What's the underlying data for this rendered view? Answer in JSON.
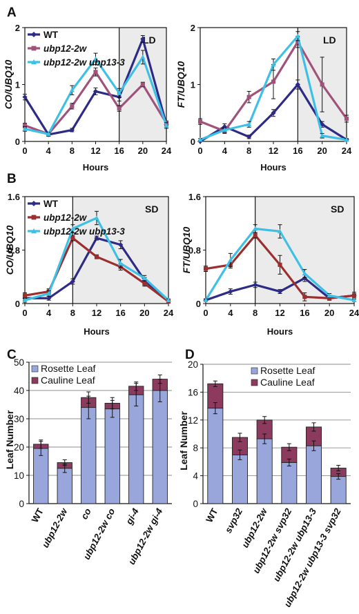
{
  "panel_labels": [
    "A",
    "B",
    "C",
    "D"
  ],
  "chart_data": [
    {
      "id": "A-left",
      "type": "line",
      "panel": "A",
      "ylabel": "CO/UBQ10",
      "xlabel": "Hours",
      "x": [
        0,
        4,
        8,
        12,
        16,
        20,
        24
      ],
      "xlim": [
        0,
        24
      ],
      "ylim": [
        0,
        2
      ],
      "yticks": [
        "0",
        "1",
        "2"
      ],
      "ytick_values": [
        0,
        1,
        2
      ],
      "shade_from": 16,
      "region_label": "LD",
      "legend": "top-left",
      "series": [
        {
          "name": "WT",
          "color": "#2d2b85",
          "marker": "diamond",
          "values": [
            0.78,
            0.12,
            0.2,
            0.88,
            0.78,
            1.8,
            0.3
          ],
          "err": [
            0.05,
            0.03,
            0.03,
            0.06,
            0.07,
            0.06,
            0.05
          ]
        },
        {
          "name": "ubp12-2w",
          "color": "#a0527b",
          "marker": "square",
          "values": [
            0.28,
            0.13,
            0.62,
            1.22,
            0.58,
            1.0,
            0.32
          ],
          "err": [
            0.04,
            0.03,
            0.05,
            0.07,
            0.05,
            0.04,
            0.04
          ]
        },
        {
          "name": "ubp12-2w ubp13-3",
          "color": "#3ec0e6",
          "marker": "triangle",
          "values": [
            0.22,
            0.13,
            0.9,
            1.45,
            0.85,
            1.48,
            0.28
          ],
          "err": [
            0.04,
            0.03,
            0.08,
            0.1,
            0.08,
            0.12,
            0.05
          ]
        }
      ]
    },
    {
      "id": "A-right",
      "type": "line",
      "panel": "A",
      "ylabel": "FT/UBQ10",
      "xlabel": "Hours",
      "x": [
        0,
        4,
        8,
        12,
        16,
        20,
        24
      ],
      "xlim": [
        0,
        24
      ],
      "ylim": [
        0,
        2
      ],
      "yticks": [
        "0",
        "1",
        "2"
      ],
      "ytick_values": [
        0,
        1,
        2
      ],
      "shade_from": 16,
      "region_label": "LD",
      "legend": "none",
      "series": [
        {
          "name": "WT",
          "color": "#2d2b85",
          "marker": "diamond",
          "values": [
            0.0,
            0.26,
            0.08,
            0.5,
            1.0,
            0.3,
            0.03
          ],
          "err": [
            0.02,
            0.05,
            0.03,
            0.06,
            0.08,
            0.05,
            0.02
          ]
        },
        {
          "name": "ubp12-2w",
          "color": "#a0527b",
          "marker": "square",
          "values": [
            0.35,
            0.18,
            0.78,
            1.05,
            1.75,
            1.0,
            0.4
          ],
          "err": [
            0.05,
            0.04,
            0.1,
            0.3,
            0.1,
            0.48,
            0.06
          ]
        },
        {
          "name": "ubp12-2w ubp13-3",
          "color": "#3ec0e6",
          "marker": "triangle",
          "values": [
            0.03,
            0.2,
            0.3,
            1.35,
            1.85,
            0.1,
            0.03
          ],
          "err": [
            0.02,
            0.04,
            0.05,
            0.1,
            0.08,
            0.04,
            0.02
          ]
        }
      ]
    },
    {
      "id": "B-left",
      "type": "line",
      "panel": "B",
      "ylabel": "CO/UBQ10",
      "xlabel": "Hours",
      "x": [
        0,
        4,
        8,
        12,
        16,
        20,
        24
      ],
      "xlim": [
        0,
        24
      ],
      "ylim": [
        0,
        1.6
      ],
      "yticks": [
        "0",
        "0.8",
        "1.6"
      ],
      "ytick_values": [
        0,
        0.8,
        1.6
      ],
      "shade_from": 8,
      "region_label": "SD",
      "legend": "top-left",
      "series": [
        {
          "name": "WT",
          "color": "#2d2b85",
          "marker": "diamond",
          "values": [
            0.08,
            0.08,
            0.33,
            0.98,
            0.88,
            0.35,
            0.03
          ],
          "err": [
            0.03,
            0.03,
            0.04,
            0.03,
            0.06,
            0.04,
            0.02
          ]
        },
        {
          "name": "ubp12-2w",
          "color": "#9b2f2f",
          "marker": "square",
          "values": [
            0.12,
            0.18,
            0.98,
            0.7,
            0.55,
            0.3,
            0.03
          ],
          "err": [
            0.04,
            0.04,
            0.04,
            0.03,
            0.05,
            0.04,
            0.02
          ]
        },
        {
          "name": "ubp12-2w ubp13-3",
          "color": "#3ec0e6",
          "marker": "triangle",
          "values": [
            0.05,
            0.15,
            1.12,
            1.28,
            0.6,
            0.38,
            0.05
          ],
          "err": [
            0.03,
            0.04,
            0.06,
            0.1,
            0.06,
            0.04,
            0.02
          ]
        }
      ]
    },
    {
      "id": "B-right",
      "type": "line",
      "panel": "B",
      "ylabel": "FT/UBQ10",
      "xlabel": "Hours",
      "x": [
        0,
        4,
        8,
        12,
        16,
        20,
        24
      ],
      "xlim": [
        0,
        24
      ],
      "ylim": [
        0,
        1.6
      ],
      "yticks": [
        "0",
        "0.8",
        "1.6"
      ],
      "ytick_values": [
        0,
        0.8,
        1.6
      ],
      "shade_from": 8,
      "region_label": "SD",
      "legend": "none",
      "series": [
        {
          "name": "WT",
          "color": "#2d2b85",
          "marker": "diamond",
          "values": [
            0.05,
            0.18,
            0.28,
            0.18,
            0.38,
            0.08,
            0.12
          ],
          "err": [
            0.02,
            0.04,
            0.04,
            0.03,
            0.05,
            0.03,
            0.03
          ]
        },
        {
          "name": "ubp12-2w",
          "color": "#9b2f2f",
          "marker": "square",
          "values": [
            0.52,
            0.58,
            1.02,
            0.58,
            0.1,
            0.08,
            0.12
          ],
          "err": [
            0.04,
            0.05,
            0.04,
            0.14,
            0.06,
            0.03,
            0.05
          ]
        },
        {
          "name": "ubp12-2w ubp13-3",
          "color": "#3ec0e6",
          "marker": "triangle",
          "values": [
            0.05,
            0.65,
            1.12,
            1.08,
            0.45,
            0.12,
            0.05
          ],
          "err": [
            0.02,
            0.1,
            0.06,
            0.1,
            0.06,
            0.03,
            0.02
          ]
        }
      ]
    },
    {
      "id": "C",
      "type": "bar",
      "panel": "C",
      "stacked": true,
      "ylabel": "Leaf Number",
      "ylim": [
        0,
        50
      ],
      "yticks": [
        "0",
        "10",
        "20",
        "30",
        "40",
        "50"
      ],
      "ytick_values": [
        0,
        10,
        20,
        30,
        40,
        50
      ],
      "grid": true,
      "legend": "top-left",
      "categories": [
        "WT",
        "ubp12-2w",
        "co",
        "ubp12-2w co",
        "gi-4",
        "ubp12-2w gi-4"
      ],
      "series": [
        {
          "name": "Rosette Leaf",
          "color": "#99a6dc",
          "values": [
            19.5,
            12.5,
            34,
            33.5,
            38.5,
            40
          ],
          "err": [
            2.5,
            1.5,
            4,
            3,
            4,
            4
          ]
        },
        {
          "name": "Cauline Leaf",
          "color": "#8c3a5e",
          "values": [
            1.5,
            2,
            3.5,
            2,
            3,
            4
          ],
          "err": [
            1.5,
            1,
            2,
            2,
            1.5,
            1.5
          ]
        }
      ]
    },
    {
      "id": "D",
      "type": "bar",
      "panel": "D",
      "stacked": true,
      "ylabel": "Leaf Number",
      "ylim": [
        0,
        20
      ],
      "yticks": [
        "0",
        "4",
        "8",
        "12",
        "16",
        "20"
      ],
      "ytick_values": [
        0,
        4,
        8,
        12,
        16,
        20
      ],
      "grid": true,
      "legend": "top-right",
      "categories": [
        "WT",
        "svp32",
        "ubp12-2w",
        "ubp12-2w svp32",
        "ubp12-2w ubp13-3",
        "ubp12-2w ubp13-3 svp32"
      ],
      "series": [
        {
          "name": "Rosette Leaf",
          "color": "#99a6dc",
          "values": [
            13.7,
            7,
            9.3,
            5.9,
            8.3,
            3.9
          ],
          "err": [
            0.8,
            0.7,
            0.7,
            0.5,
            0.7,
            0.4
          ]
        },
        {
          "name": "Cauline Leaf",
          "color": "#8c3a5e",
          "values": [
            3.5,
            2.5,
            2.7,
            2.2,
            2.7,
            1.2
          ],
          "err": [
            0.4,
            0.6,
            0.5,
            0.5,
            0.6,
            0.4
          ]
        }
      ]
    }
  ]
}
